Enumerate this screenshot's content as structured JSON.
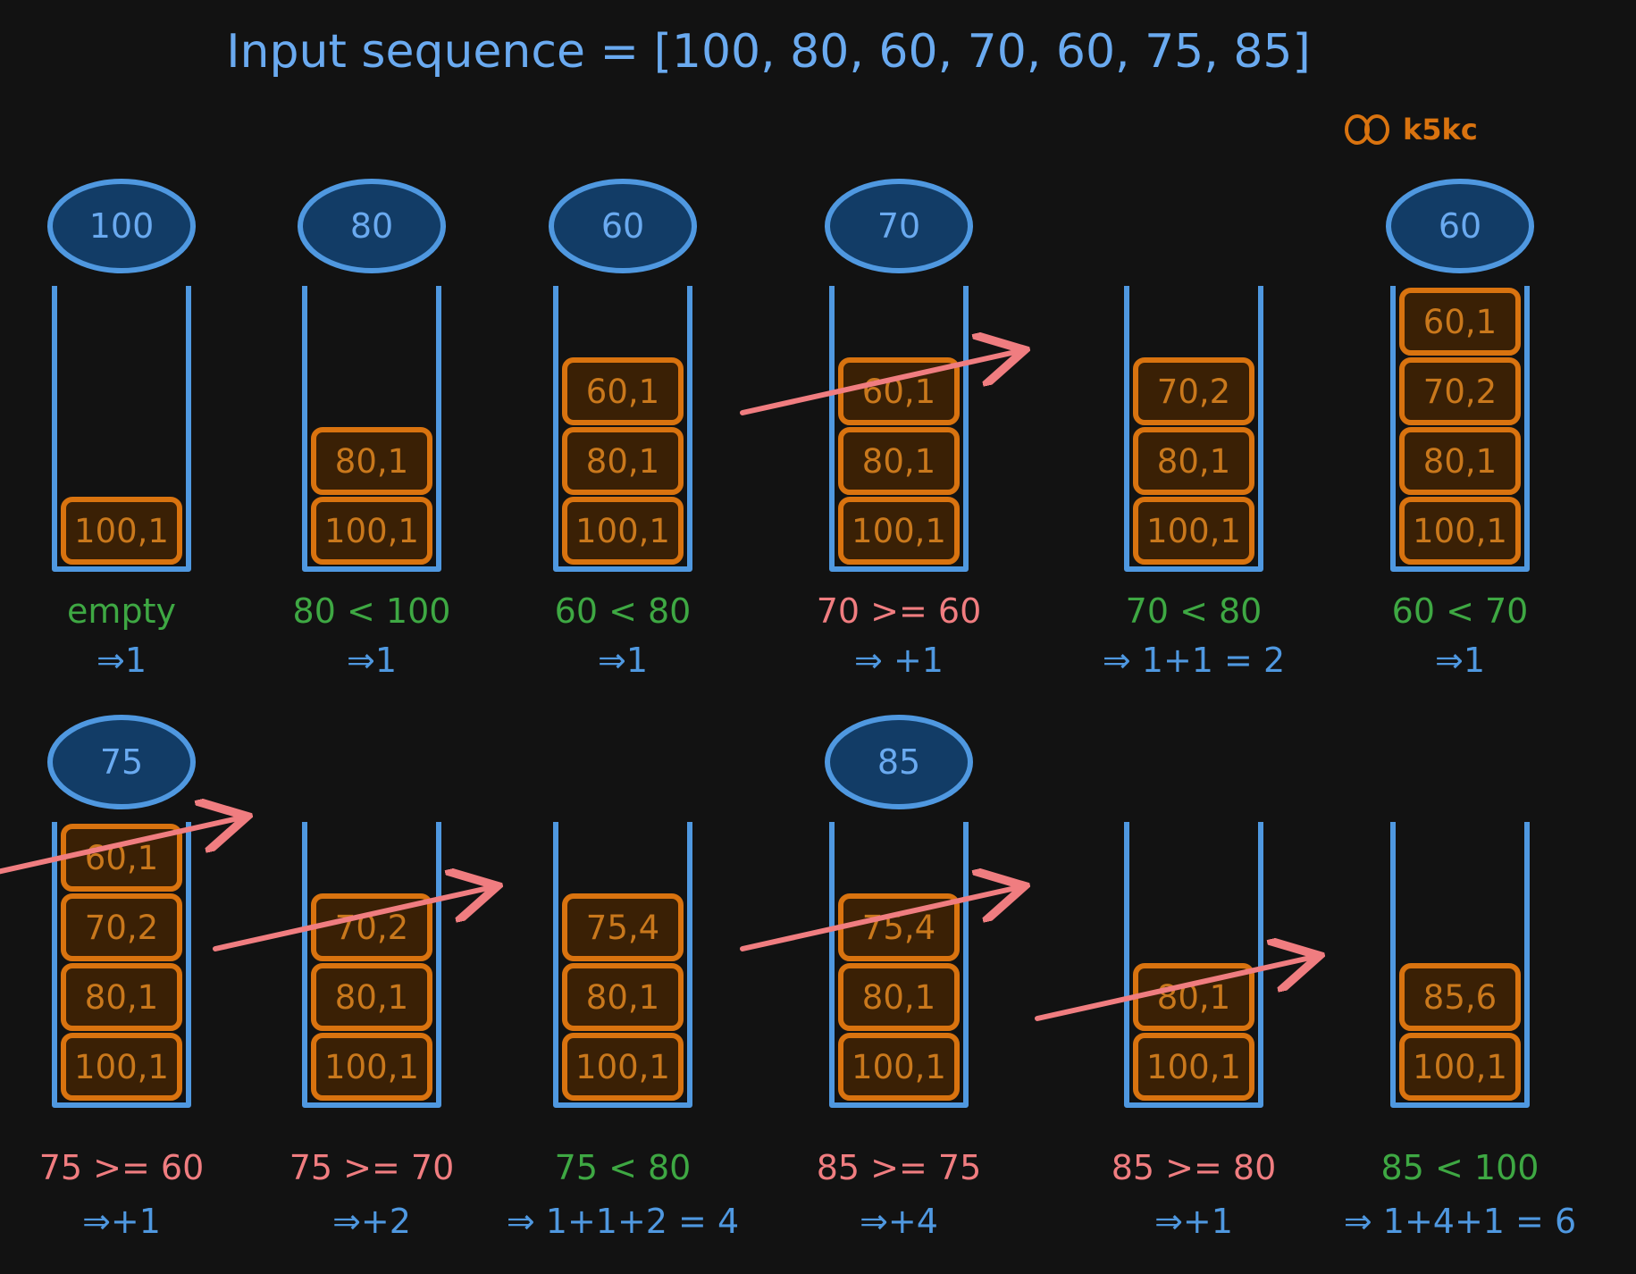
{
  "title": "Input sequence = [100, 80, 60, 70, 60, 75, 85]",
  "watermark": "k5kc",
  "colors": {
    "background": "#121212",
    "stack_outline": "#4f98e0",
    "input_fill": "#123c66",
    "input_stroke": "#4f98e0",
    "input_text": "#6aaaf0",
    "item_fill": "#3a2005",
    "item_stroke": "#d9730f",
    "item_text": "#c9781c",
    "green": "#3ea843",
    "red": "#f07d80",
    "blue": "#4f98e0",
    "arrow": "#f07d80",
    "watermark": "#d9730f"
  },
  "panels": [
    {
      "input": "100",
      "items": [
        "100,1"
      ],
      "popped": [],
      "condition": "empty",
      "condition_color": "green",
      "result": "⇒1"
    },
    {
      "input": "80",
      "items": [
        "100,1",
        "80,1"
      ],
      "popped": [],
      "condition": "80 < 100",
      "condition_color": "green",
      "result": "⇒1"
    },
    {
      "input": "60",
      "items": [
        "100,1",
        "80,1",
        "60,1"
      ],
      "popped": [],
      "condition": "60 < 80",
      "condition_color": "green",
      "result": "⇒1"
    },
    {
      "input": "70",
      "items": [
        "100,1",
        "80,1",
        "60,1"
      ],
      "popped": [
        2
      ],
      "condition": "70 >= 60",
      "condition_color": "red",
      "result": "⇒ +1"
    },
    {
      "input": "",
      "items": [
        "100,1",
        "80,1",
        "70,2"
      ],
      "popped": [],
      "condition": "70 < 80",
      "condition_color": "green",
      "result": "⇒ 1+1 = 2"
    },
    {
      "input": "60",
      "items": [
        "100,1",
        "80,1",
        "70,2",
        "60,1"
      ],
      "popped": [],
      "condition": "60 < 70",
      "condition_color": "green",
      "result": "⇒1"
    },
    {
      "input": "75",
      "items": [
        "100,1",
        "80,1",
        "70,2",
        "60,1"
      ],
      "popped": [
        3
      ],
      "condition": "75 >= 60",
      "condition_color": "red",
      "result": "⇒+1"
    },
    {
      "input": "",
      "items": [
        "100,1",
        "80,1",
        "70,2"
      ],
      "popped": [
        2
      ],
      "condition": "75 >= 70",
      "condition_color": "red",
      "result": "⇒+2"
    },
    {
      "input": "",
      "items": [
        "100,1",
        "80,1",
        "75,4"
      ],
      "popped": [],
      "condition": "75 < 80",
      "condition_color": "green",
      "result": "⇒ 1+1+2 = 4"
    },
    {
      "input": "85",
      "items": [
        "100,1",
        "80,1",
        "75,4"
      ],
      "popped": [
        2
      ],
      "condition": "85 >= 75",
      "condition_color": "red",
      "result": "⇒+4"
    },
    {
      "input": "",
      "items": [
        "100,1",
        "80,1"
      ],
      "popped": [
        1
      ],
      "condition": "85 >= 80",
      "condition_color": "red",
      "result": "⇒+1"
    },
    {
      "input": "",
      "items": [
        "100,1",
        "85,6"
      ],
      "popped": [],
      "condition": "85 < 100",
      "condition_color": "green",
      "result": "⇒ 1+4+1 = 6"
    }
  ]
}
